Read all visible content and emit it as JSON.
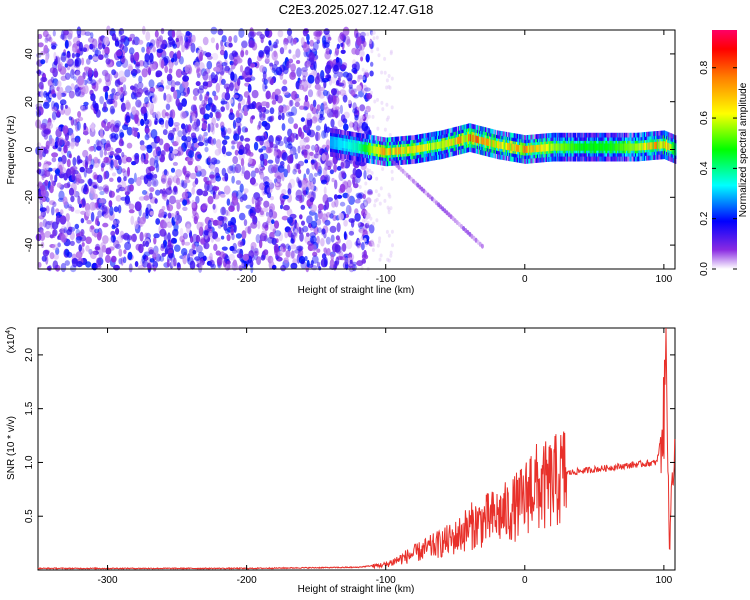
{
  "title": "C2E3.2025.027.12.47.G18",
  "chart_data": [
    {
      "type": "heatmap",
      "xlabel": "Height of straight line (km)",
      "ylabel": "Frequency (Hz)",
      "xlim": [
        -350,
        108
      ],
      "ylim": [
        -50,
        50
      ],
      "x_ticks": [
        -300,
        -200,
        -100,
        0,
        100
      ],
      "x_tick_labels": [
        "-300",
        "-200",
        "-100",
        "0",
        "100"
      ],
      "y_ticks": [
        -40,
        -20,
        0,
        20,
        40
      ],
      "y_tick_labels": [
        "-40",
        "-20",
        "0",
        "20",
        "40"
      ],
      "colorbar": {
        "label": "Normalized spectral amplitude",
        "range": [
          0,
          0.95
        ],
        "ticks": [
          0.0,
          0.2,
          0.4,
          0.6,
          0.8
        ],
        "tick_labels": [
          "0.0",
          "0.2",
          "0.4",
          "0.6",
          "0.8"
        ],
        "colors": [
          "#ffffff",
          "#8a2be2",
          "#0000ff",
          "#00ffff",
          "#00ff00",
          "#ffff00",
          "#ff8000",
          "#ff0000",
          "#ff0066"
        ]
      },
      "noise_region_x": [
        -350,
        -120
      ],
      "signal_band": {
        "x": [
          -140,
          -120,
          -100,
          -80,
          -60,
          -40,
          -20,
          0,
          20,
          40,
          60,
          80,
          100,
          108
        ],
        "center_freq": [
          3,
          1,
          -1,
          0,
          2,
          5,
          2,
          0,
          1,
          1,
          1,
          1,
          2,
          0
        ],
        "peak_amplitude": [
          0.3,
          0.4,
          0.8,
          0.7,
          0.6,
          0.9,
          0.7,
          0.8,
          0.6,
          0.5,
          0.5,
          0.6,
          0.9,
          0.4
        ]
      },
      "grid": false
    },
    {
      "type": "line",
      "xlabel": "Height of straight line (km)",
      "ylabel": "SNR (10 * v/v)",
      "y_multiplier_label": "(x10",
      "y_multiplier_exp": "4",
      "xlim": [
        -350,
        108
      ],
      "ylim": [
        0,
        2.25
      ],
      "x_ticks": [
        -300,
        -200,
        -100,
        0,
        100
      ],
      "x_tick_labels": [
        "-300",
        "-200",
        "-100",
        "0",
        "100"
      ],
      "y_ticks": [
        0.5,
        1.0,
        1.5,
        2.0
      ],
      "y_tick_labels": [
        "0.5",
        "1.0",
        "1.5",
        "2.0"
      ],
      "color": "#e8302a",
      "series": [
        {
          "x": [
            -350,
            -200,
            -120,
            -100,
            -90,
            -80,
            -70,
            -60,
            -50,
            -40,
            -30,
            -20,
            -10,
            0,
            5,
            10,
            20,
            30,
            40,
            60,
            80,
            95,
            100,
            102,
            104,
            106,
            108
          ],
          "y": [
            0.01,
            0.01,
            0.02,
            0.05,
            0.1,
            0.15,
            0.2,
            0.25,
            0.3,
            0.4,
            0.45,
            0.5,
            0.55,
            0.65,
            0.8,
            0.75,
            0.8,
            0.9,
            0.92,
            0.95,
            0.98,
            1.0,
            1.4,
            2.2,
            0.1,
            1.0,
            1.05
          ]
        }
      ],
      "grid": false
    }
  ]
}
